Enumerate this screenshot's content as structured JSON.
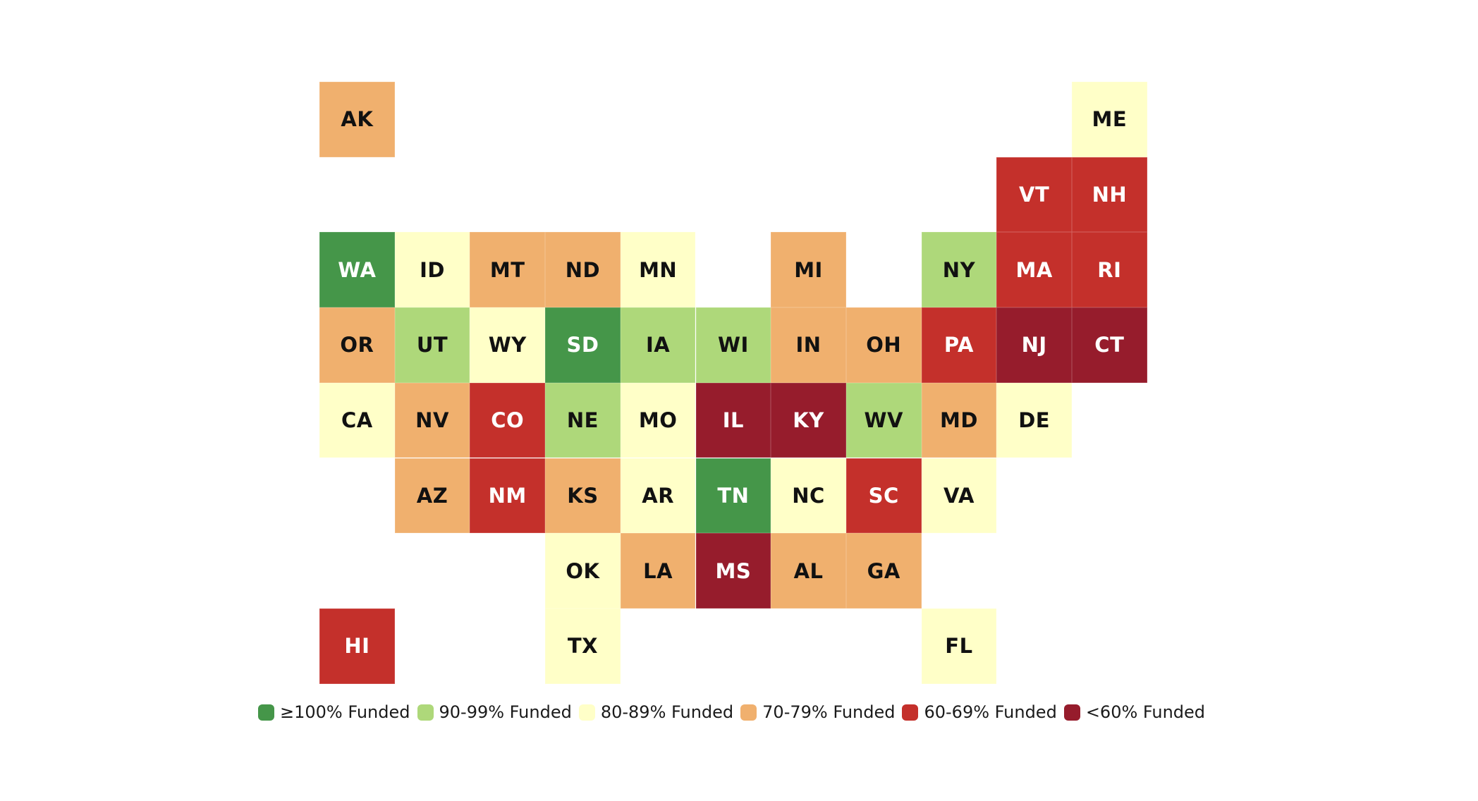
{
  "chart_data": {
    "type": "heatmap",
    "subtype": "tile-grid-map",
    "title": "",
    "grid": {
      "columns": 11,
      "rows": 8
    },
    "categories": [
      {
        "key": "g100",
        "label": "≥100% Funded",
        "color": "#459649",
        "text_color": "#ffffff"
      },
      {
        "key": "g90",
        "label": "90-99% Funded",
        "color": "#AED87A",
        "text_color": "#111111"
      },
      {
        "key": "y80",
        "label": "80-89% Funded",
        "color": "#FFFFC8",
        "text_color": "#111111"
      },
      {
        "key": "o70",
        "label": "70-79% Funded",
        "color": "#F0B06E",
        "text_color": "#111111"
      },
      {
        "key": "r60",
        "label": "60-69% Funded",
        "color": "#C4302B",
        "text_color": "#ffffff"
      },
      {
        "key": "d60",
        "label": "<60% Funded",
        "color": "#961C2C",
        "text_color": "#ffffff"
      }
    ],
    "states": [
      {
        "abbr": "AK",
        "col": 0,
        "row": 0,
        "category": "o70"
      },
      {
        "abbr": "ME",
        "col": 10,
        "row": 0,
        "category": "y80"
      },
      {
        "abbr": "VT",
        "col": 9,
        "row": 1,
        "category": "r60"
      },
      {
        "abbr": "NH",
        "col": 10,
        "row": 1,
        "category": "r60"
      },
      {
        "abbr": "WA",
        "col": 0,
        "row": 2,
        "category": "g100"
      },
      {
        "abbr": "ID",
        "col": 1,
        "row": 2,
        "category": "y80"
      },
      {
        "abbr": "MT",
        "col": 2,
        "row": 2,
        "category": "o70"
      },
      {
        "abbr": "ND",
        "col": 3,
        "row": 2,
        "category": "o70"
      },
      {
        "abbr": "MN",
        "col": 4,
        "row": 2,
        "category": "y80"
      },
      {
        "abbr": "MI",
        "col": 6,
        "row": 2,
        "category": "o70"
      },
      {
        "abbr": "NY",
        "col": 8,
        "row": 2,
        "category": "g90"
      },
      {
        "abbr": "MA",
        "col": 9,
        "row": 2,
        "category": "r60"
      },
      {
        "abbr": "RI",
        "col": 10,
        "row": 2,
        "category": "r60"
      },
      {
        "abbr": "OR",
        "col": 0,
        "row": 3,
        "category": "o70"
      },
      {
        "abbr": "UT",
        "col": 1,
        "row": 3,
        "category": "g90"
      },
      {
        "abbr": "WY",
        "col": 2,
        "row": 3,
        "category": "y80"
      },
      {
        "abbr": "SD",
        "col": 3,
        "row": 3,
        "category": "g100"
      },
      {
        "abbr": "IA",
        "col": 4,
        "row": 3,
        "category": "g90"
      },
      {
        "abbr": "WI",
        "col": 5,
        "row": 3,
        "category": "g90"
      },
      {
        "abbr": "IN",
        "col": 6,
        "row": 3,
        "category": "o70"
      },
      {
        "abbr": "OH",
        "col": 7,
        "row": 3,
        "category": "o70"
      },
      {
        "abbr": "PA",
        "col": 8,
        "row": 3,
        "category": "r60"
      },
      {
        "abbr": "NJ",
        "col": 9,
        "row": 3,
        "category": "d60"
      },
      {
        "abbr": "CT",
        "col": 10,
        "row": 3,
        "category": "d60"
      },
      {
        "abbr": "CA",
        "col": 0,
        "row": 4,
        "category": "y80"
      },
      {
        "abbr": "NV",
        "col": 1,
        "row": 4,
        "category": "o70"
      },
      {
        "abbr": "CO",
        "col": 2,
        "row": 4,
        "category": "r60"
      },
      {
        "abbr": "NE",
        "col": 3,
        "row": 4,
        "category": "g90"
      },
      {
        "abbr": "MO",
        "col": 4,
        "row": 4,
        "category": "y80"
      },
      {
        "abbr": "IL",
        "col": 5,
        "row": 4,
        "category": "d60"
      },
      {
        "abbr": "KY",
        "col": 6,
        "row": 4,
        "category": "d60"
      },
      {
        "abbr": "WV",
        "col": 7,
        "row": 4,
        "category": "g90"
      },
      {
        "abbr": "MD",
        "col": 8,
        "row": 4,
        "category": "o70"
      },
      {
        "abbr": "DE",
        "col": 9,
        "row": 4,
        "category": "y80"
      },
      {
        "abbr": "AZ",
        "col": 1,
        "row": 5,
        "category": "o70"
      },
      {
        "abbr": "NM",
        "col": 2,
        "row": 5,
        "category": "r60"
      },
      {
        "abbr": "KS",
        "col": 3,
        "row": 5,
        "category": "o70"
      },
      {
        "abbr": "AR",
        "col": 4,
        "row": 5,
        "category": "y80"
      },
      {
        "abbr": "TN",
        "col": 5,
        "row": 5,
        "category": "g100"
      },
      {
        "abbr": "NC",
        "col": 6,
        "row": 5,
        "category": "y80"
      },
      {
        "abbr": "SC",
        "col": 7,
        "row": 5,
        "category": "r60"
      },
      {
        "abbr": "VA",
        "col": 8,
        "row": 5,
        "category": "y80"
      },
      {
        "abbr": "OK",
        "col": 3,
        "row": 6,
        "category": "y80"
      },
      {
        "abbr": "LA",
        "col": 4,
        "row": 6,
        "category": "o70"
      },
      {
        "abbr": "MS",
        "col": 5,
        "row": 6,
        "category": "d60"
      },
      {
        "abbr": "AL",
        "col": 6,
        "row": 6,
        "category": "o70"
      },
      {
        "abbr": "GA",
        "col": 7,
        "row": 6,
        "category": "o70"
      },
      {
        "abbr": "HI",
        "col": 0,
        "row": 7,
        "category": "r60"
      },
      {
        "abbr": "TX",
        "col": 3,
        "row": 7,
        "category": "y80"
      },
      {
        "abbr": "FL",
        "col": 8,
        "row": 7,
        "category": "y80"
      }
    ],
    "legend_position": "bottom"
  }
}
